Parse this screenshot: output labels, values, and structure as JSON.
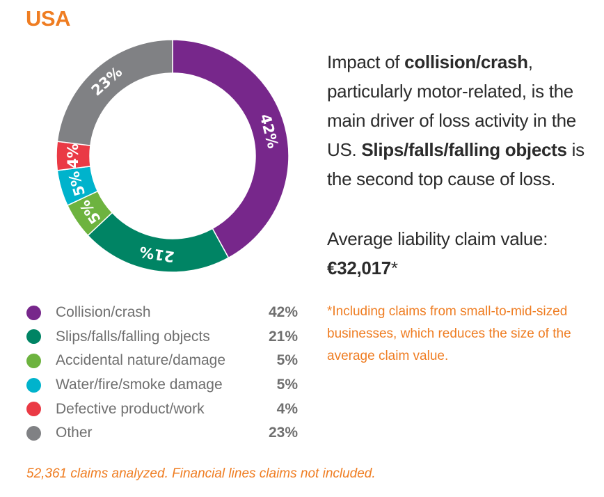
{
  "title": "USA",
  "description": {
    "p1": "Impact of ",
    "b1": "collision/crash",
    "p2": ", particularly motor-related, is the main driver of loss activity in the US. ",
    "b2": "Slips/falls/falling objects",
    "p3": " is the second top cause of loss."
  },
  "average": {
    "label": "Average liability claim value: ",
    "value": "€32,017",
    "mark": "*"
  },
  "note": "*Including claims from small-to-mid-sized businesses, which reduces the size of the average claim value.",
  "footer": "52,361 claims analyzed. Financial lines claims not included.",
  "chart_data": {
    "type": "pie",
    "variant": "donut",
    "title": "USA",
    "categories": [
      "Collision/crash",
      "Slips/falls/falling objects",
      "Accidental nature/damage",
      "Water/fire/smoke damage",
      "Defective product/work",
      "Other"
    ],
    "values": [
      42,
      21,
      5,
      5,
      4,
      23
    ],
    "labels": [
      "42%",
      "21%",
      "5%",
      "5%",
      "4%",
      "23%"
    ],
    "colors": [
      "#77278b",
      "#008464",
      "#6db33f",
      "#00b3cc",
      "#ea3a45",
      "#808184"
    ],
    "legend_position": "bottom"
  }
}
